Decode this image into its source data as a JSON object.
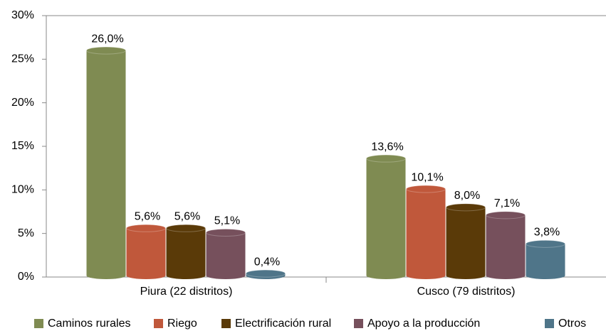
{
  "chart_data": {
    "type": "bar",
    "categories": [
      "Piura (22 distritos)",
      "Cusco (79 distritos)"
    ],
    "series": [
      {
        "name": "Caminos rurales",
        "color": "#7f8b52",
        "values": [
          26.0,
          13.6
        ],
        "value_labels": [
          "26,0%",
          "13,6%"
        ]
      },
      {
        "name": "Riego",
        "color": "#c0583b",
        "values": [
          5.6,
          10.1
        ],
        "value_labels": [
          "5,6%",
          "10,1%"
        ]
      },
      {
        "name": "Electrificación rural",
        "color": "#5a3a08",
        "values": [
          5.6,
          8.0
        ],
        "value_labels": [
          "5,6%",
          "8,0%"
        ]
      },
      {
        "name": "Apoyo a la producción",
        "color": "#76505c",
        "values": [
          5.1,
          7.1
        ],
        "value_labels": [
          "5,1%",
          "7,1%"
        ]
      },
      {
        "name": "Otros",
        "color": "#4f7589",
        "values": [
          0.4,
          3.8
        ],
        "value_labels": [
          "0,4%",
          "3,8%"
        ]
      }
    ],
    "ylim": [
      0,
      30
    ],
    "yticks": [
      {
        "value": 0,
        "label": "0%"
      },
      {
        "value": 5,
        "label": "5%"
      },
      {
        "value": 10,
        "label": "10%"
      },
      {
        "value": 15,
        "label": "15%"
      },
      {
        "value": 20,
        "label": "20%"
      },
      {
        "value": 25,
        "label": "25%"
      },
      {
        "value": 30,
        "label": "30%"
      }
    ],
    "legend": "bottom"
  }
}
